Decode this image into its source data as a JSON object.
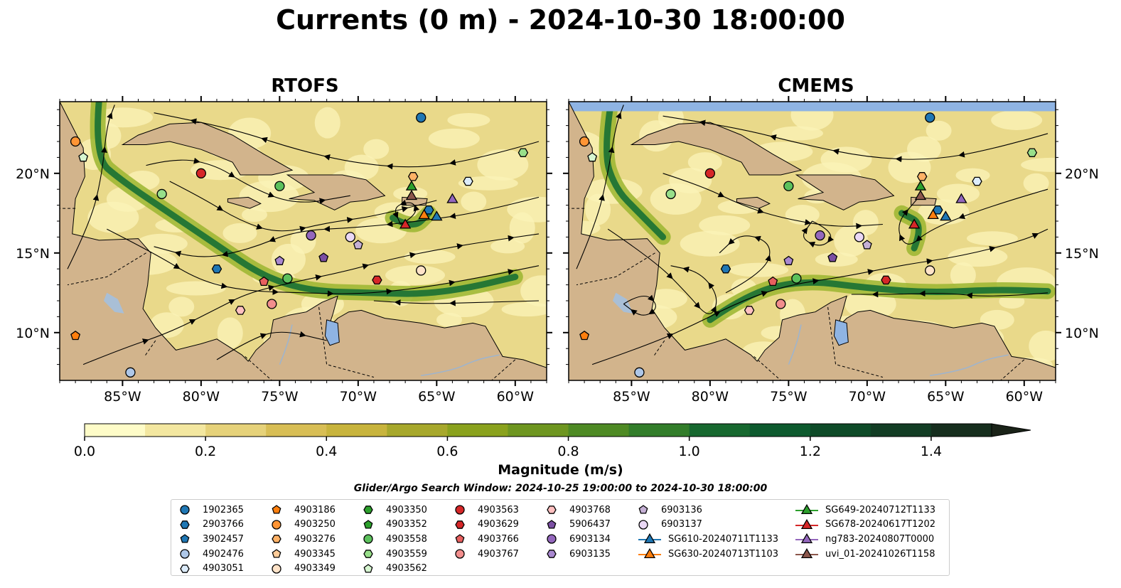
{
  "title": "Currents (0 m) - 2024-10-30 18:00:00",
  "panels": [
    {
      "title": "RTOFS"
    },
    {
      "title": "CMEMS"
    }
  ],
  "map": {
    "lon_range": [
      -89,
      -58
    ],
    "lat_range": [
      7,
      24.5
    ],
    "lon_ticks": [
      -85,
      -80,
      -75,
      -70,
      -65,
      -60
    ],
    "lon_tick_labels": [
      "85°W",
      "80°W",
      "75°W",
      "70°W",
      "65°W",
      "60°W"
    ],
    "lat_ticks": [
      10,
      15,
      20
    ],
    "lat_tick_labels": [
      "10°N",
      "15°N",
      "20°N"
    ],
    "colors": {
      "land": "#d2b48c",
      "water_light": "#fef9c3",
      "current_mid": "#9bb52f",
      "current_strong": "#0f6b32",
      "lake": "#8fb4e3"
    }
  },
  "colorbar": {
    "label": "Magnitude (m/s)",
    "range": [
      0,
      1.5
    ],
    "ticks": [
      "0.0",
      "0.2",
      "0.4",
      "0.6",
      "0.8",
      "1.0",
      "1.2",
      "1.4"
    ],
    "tick_values": [
      0,
      0.2,
      0.4,
      0.6,
      0.8,
      1.0,
      1.2,
      1.4
    ],
    "colors": [
      "#fefcc8",
      "#f3e7a0",
      "#e6d27a",
      "#d8be55",
      "#c8b43d",
      "#a7a82c",
      "#8aa21d",
      "#6e9620",
      "#4e8a24",
      "#327d2a",
      "#17682f",
      "#0d5a2e",
      "#0e4b28",
      "#123d24",
      "#162e1e",
      "#1a2318"
    ]
  },
  "search_window": "Glider/Argo Search Window: 2024-10-25 19:00:00 to 2024-10-30 18:00:00",
  "legend": {
    "columns": [
      [
        {
          "label": "1902365",
          "shape": "circle",
          "color": "#1f77b4"
        },
        {
          "label": "2903766",
          "shape": "hexagon",
          "color": "#1f77b4"
        },
        {
          "label": "3902457",
          "shape": "pentagon",
          "color": "#1f77b4"
        },
        {
          "label": "4902476",
          "shape": "circle",
          "color": "#aec7e8"
        },
        {
          "label": "4903051",
          "shape": "hexagon",
          "color": "#dcecfb"
        }
      ],
      [
        {
          "label": "4903186",
          "shape": "pentagon",
          "color": "#ff7f0e"
        },
        {
          "label": "4903250",
          "shape": "circle",
          "color": "#ff9535"
        },
        {
          "label": "4903276",
          "shape": "hexagon",
          "color": "#ffb266"
        },
        {
          "label": "4903345",
          "shape": "pentagon",
          "color": "#ffcc99"
        },
        {
          "label": "4903349",
          "shape": "circle",
          "color": "#ffe3c8"
        }
      ],
      [
        {
          "label": "4903350",
          "shape": "hexagon",
          "color": "#2ca02c"
        },
        {
          "label": "4903352",
          "shape": "pentagon",
          "color": "#2ca02c"
        },
        {
          "label": "4903558",
          "shape": "circle",
          "color": "#5cc15c"
        },
        {
          "label": "4903559",
          "shape": "hexagon",
          "color": "#98df8a"
        },
        {
          "label": "4903562",
          "shape": "pentagon",
          "color": "#d6f5d0"
        }
      ],
      [
        {
          "label": "4903563",
          "shape": "circle",
          "color": "#d62728"
        },
        {
          "label": "4903629",
          "shape": "hexagon",
          "color": "#d62728"
        },
        {
          "label": "4903766",
          "shape": "pentagon",
          "color": "#e8605f"
        },
        {
          "label": "4903767",
          "shape": "circle",
          "color": "#f28e8d"
        }
      ],
      [
        {
          "label": "4903768",
          "shape": "hexagon",
          "color": "#ffc0c0"
        },
        {
          "label": "5906437",
          "shape": "pentagon",
          "color": "#7b4fa3"
        },
        {
          "label": "6903134",
          "shape": "circle",
          "color": "#9467bd"
        },
        {
          "label": "6903135",
          "shape": "hexagon",
          "color": "#a988d0"
        }
      ],
      [
        {
          "label": "6903136",
          "shape": "pentagon",
          "color": "#c5b0d5"
        },
        {
          "label": "6903137",
          "shape": "circle",
          "color": "#ead8f5"
        },
        {
          "label": "SG610-20240711T1133",
          "shape": "triangle",
          "color": "#1f77b4"
        },
        {
          "label": "SG630-20240713T1103",
          "shape": "triangle",
          "color": "#ff7f0e"
        }
      ],
      [
        {
          "label": "SG649-20240712T1133",
          "shape": "triangle",
          "color": "#2ca02c"
        },
        {
          "label": "SG678-20240617T1202",
          "shape": "triangle",
          "color": "#d62728"
        },
        {
          "label": "ng783-20240807T0000",
          "shape": "triangle",
          "color": "#9467bd"
        },
        {
          "label": "uvi_01-20241026T1158",
          "shape": "triangle",
          "color": "#8c564b"
        }
      ]
    ]
  },
  "markers": [
    {
      "lon": -66.0,
      "lat": 23.5,
      "shape": "circle",
      "color": "#1f77b4"
    },
    {
      "lon": -88.0,
      "lat": 22.0,
      "shape": "circle",
      "color": "#ff9535"
    },
    {
      "lon": -87.5,
      "lat": 21.0,
      "shape": "pentagon",
      "color": "#d6f5d0"
    },
    {
      "lon": -80.0,
      "lat": 20.0,
      "shape": "circle",
      "color": "#d62728"
    },
    {
      "lon": -82.5,
      "lat": 18.7,
      "shape": "circle",
      "color": "#98df8a"
    },
    {
      "lon": -75.0,
      "lat": 19.2,
      "shape": "circle",
      "color": "#5cc15c"
    },
    {
      "lon": -66.5,
      "lat": 19.8,
      "shape": "hexagon",
      "color": "#ffb266"
    },
    {
      "lon": -63.0,
      "lat": 19.5,
      "shape": "hexagon",
      "color": "#dcecfb"
    },
    {
      "lon": -59.5,
      "lat": 21.3,
      "shape": "hexagon",
      "color": "#98df8a"
    },
    {
      "lon": -66.6,
      "lat": 19.2,
      "shape": "triangle",
      "color": "#2ca02c"
    },
    {
      "lon": -66.6,
      "lat": 18.6,
      "shape": "triangle",
      "color": "#8c564b"
    },
    {
      "lon": -64.0,
      "lat": 18.4,
      "shape": "triangle",
      "color": "#9467bd"
    },
    {
      "lon": -65.5,
      "lat": 17.7,
      "shape": "hexagon",
      "color": "#1f77b4"
    },
    {
      "lon": -65.8,
      "lat": 17.4,
      "shape": "triangle",
      "color": "#ff7f0e"
    },
    {
      "lon": -65.0,
      "lat": 17.3,
      "shape": "triangle",
      "color": "#1f77b4"
    },
    {
      "lon": -67.0,
      "lat": 16.8,
      "shape": "triangle",
      "color": "#d62728"
    },
    {
      "lon": -73.0,
      "lat": 16.1,
      "shape": "circle",
      "color": "#9467bd"
    },
    {
      "lon": -70.5,
      "lat": 16.0,
      "shape": "circle",
      "color": "#ead8f5"
    },
    {
      "lon": -70.0,
      "lat": 15.5,
      "shape": "pentagon",
      "color": "#c5b0d5"
    },
    {
      "lon": -75.0,
      "lat": 14.5,
      "shape": "pentagon",
      "color": "#a988d0"
    },
    {
      "lon": -72.2,
      "lat": 14.7,
      "shape": "pentagon",
      "color": "#7b4fa3"
    },
    {
      "lon": -79.0,
      "lat": 14.0,
      "shape": "hexagon",
      "color": "#1f77b4"
    },
    {
      "lon": -74.5,
      "lat": 13.4,
      "shape": "circle",
      "color": "#5cc15c"
    },
    {
      "lon": -76.0,
      "lat": 13.2,
      "shape": "pentagon",
      "color": "#e8605f"
    },
    {
      "lon": -68.8,
      "lat": 13.3,
      "shape": "hexagon",
      "color": "#d62728"
    },
    {
      "lon": -66.0,
      "lat": 13.9,
      "shape": "circle",
      "color": "#ffe3c8"
    },
    {
      "lon": -75.5,
      "lat": 11.8,
      "shape": "circle",
      "color": "#f28e8d"
    },
    {
      "lon": -77.5,
      "lat": 11.4,
      "shape": "hexagon",
      "color": "#ffc0c0"
    },
    {
      "lon": -88.0,
      "lat": 9.8,
      "shape": "pentagon",
      "color": "#ff7f0e"
    },
    {
      "lon": -84.5,
      "lat": 7.5,
      "shape": "circle",
      "color": "#aec7e8"
    }
  ]
}
